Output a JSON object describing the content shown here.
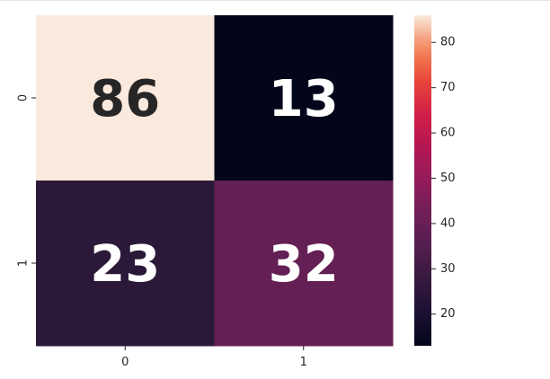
{
  "chart_data": {
    "type": "heatmap",
    "title": "",
    "xlabel": "",
    "ylabel": "",
    "x_categories": [
      "0",
      "1"
    ],
    "y_categories": [
      "0",
      "1"
    ],
    "values": [
      [
        86,
        13
      ],
      [
        23,
        32
      ]
    ],
    "colormap": "rocket",
    "colorbar": {
      "range": [
        13,
        86
      ],
      "ticks": [
        20,
        30,
        40,
        50,
        60,
        70,
        80
      ],
      "tick_labels": [
        "20",
        "30",
        "40",
        "50",
        "60",
        "70",
        "80"
      ],
      "placement": "right"
    },
    "cell_colors": [
      [
        "#fae9dd",
        "#03051a"
      ],
      [
        "#2c1939",
        "#641f54"
      ]
    ],
    "annotation_colors": [
      [
        "#262626",
        "#ffffff"
      ],
      [
        "#ffffff",
        "#ffffff"
      ]
    ]
  }
}
